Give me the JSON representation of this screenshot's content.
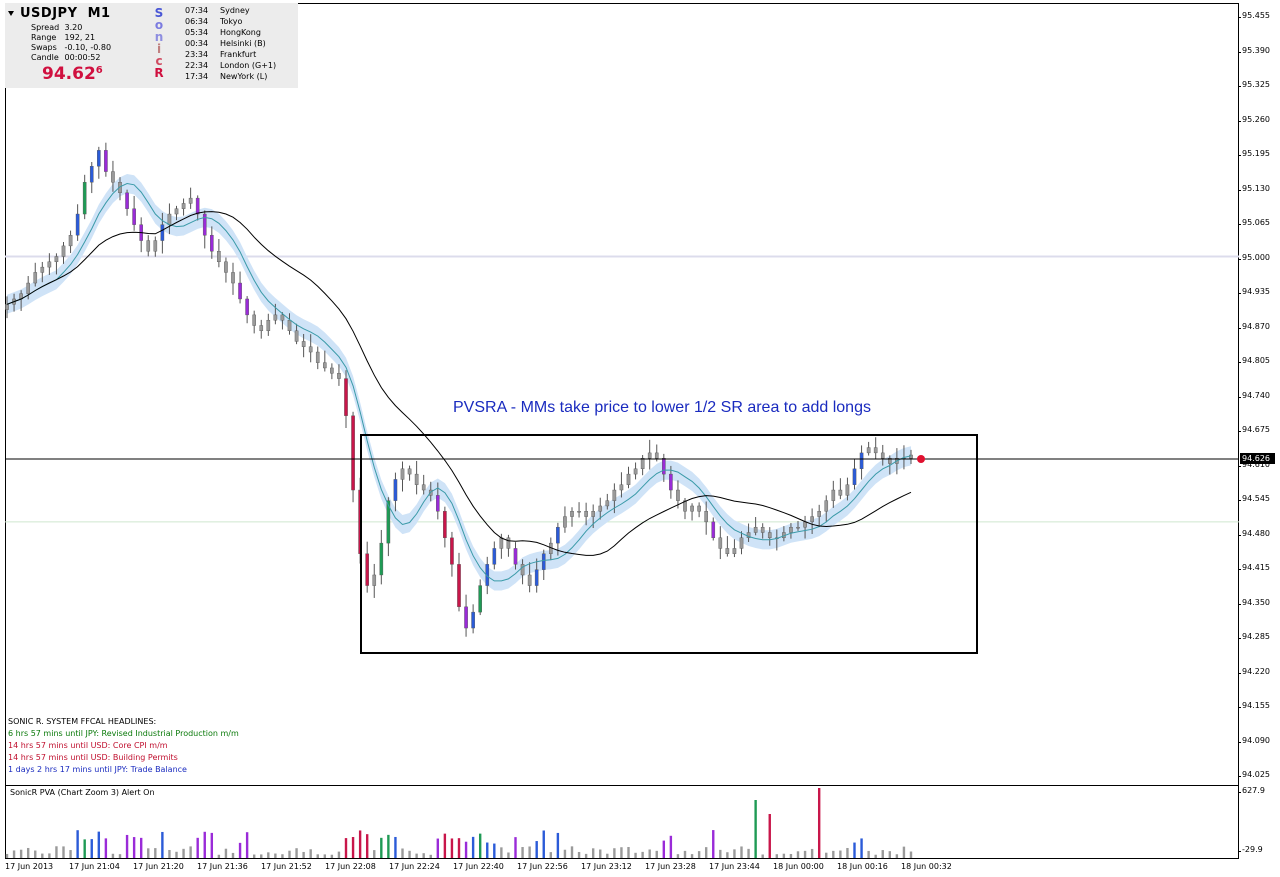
{
  "info_panel": {
    "symbol": "USDJPY",
    "timeframe": "M1",
    "rows": [
      {
        "key": "Spread",
        "value": "3.20"
      },
      {
        "key": "Range",
        "value": "192, 21"
      },
      {
        "key": "Swaps",
        "value": "-0.10, -0.80"
      },
      {
        "key": "Candle",
        "value": "00:00:52"
      }
    ],
    "bid_main": "94.62",
    "bid_pip": "6",
    "sonic_letters": [
      {
        "ch": "S",
        "color": "#4a57d6"
      },
      {
        "ch": "o",
        "color": "#7b7be0"
      },
      {
        "ch": "n",
        "color": "#8e8ee0"
      },
      {
        "ch": "i",
        "color": "#c08080"
      },
      {
        "ch": "c",
        "color": "#d04a60"
      },
      {
        "ch": "R",
        "color": "#d0103f"
      }
    ],
    "sessions": [
      {
        "time": "07:34",
        "name": "Sydney"
      },
      {
        "time": "06:34",
        "name": "Tokyo"
      },
      {
        "time": "05:34",
        "name": "HongKong"
      },
      {
        "time": "00:34",
        "name": "Helsinki  (B)"
      },
      {
        "time": "23:34",
        "name": "Frankfurt"
      },
      {
        "time": "22:34",
        "name": "London  (G+1)"
      },
      {
        "time": "17:34",
        "name": "NewYork  (L)"
      }
    ]
  },
  "annotation": "PVSRA - MMs take price to lower 1/2 SR area to add longs",
  "headlines": {
    "title": "SONIC R. SYSTEM  FFCAL HEADLINES:",
    "items": [
      {
        "text": "6 hrs 57 mins until JPY: Revised Industrial Production m/m",
        "color": "#0a7a0a"
      },
      {
        "text": "14 hrs 57 mins until USD: Core CPI m/m",
        "color": "#c0102f"
      },
      {
        "text": "14 hrs 57 mins until USD: Building Permits",
        "color": "#c0102f"
      },
      {
        "text": "1 days 2 hrs 17 mins until JPY: Trade Balance",
        "color": "#1a2bbf"
      }
    ]
  },
  "sub_window": {
    "label": "SonicR PVA  (Chart Zoom 3)  Alert On",
    "scale_max": "627.9",
    "scale_min": "-29.9"
  },
  "current_price_tag": "94.626",
  "chart_data": {
    "type": "candlestick",
    "symbol": "USDJPY",
    "timeframe": "M1",
    "y_ticks": [
      "95.455",
      "95.390",
      "95.325",
      "95.260",
      "95.195",
      "95.130",
      "95.065",
      "95.000",
      "94.935",
      "94.870",
      "94.805",
      "94.740",
      "94.675",
      "94.610",
      "94.545",
      "94.480",
      "94.415",
      "94.350",
      "94.285",
      "94.220",
      "94.155",
      "94.090",
      "94.025"
    ],
    "x_ticks": [
      "17 Jun 2013",
      "17 Jun 21:04",
      "17 Jun 21:20",
      "17 Jun 21:36",
      "17 Jun 21:52",
      "17 Jun 22:08",
      "17 Jun 22:24",
      "17 Jun 22:40",
      "17 Jun 22:56",
      "17 Jun 23:12",
      "17 Jun 23:28",
      "17 Jun 23:44",
      "18 Jun 00:00",
      "18 Jun 00:16",
      "18 Jun 00:32"
    ],
    "ylim": [
      94.0,
      95.46
    ],
    "current_price": 94.626,
    "horizontal_levels": [
      95.0,
      94.5
    ],
    "box": {
      "price_high": 94.67,
      "price_low": 94.26
    },
    "price_path": [
      94.91,
      94.92,
      94.93,
      94.95,
      94.97,
      94.98,
      94.99,
      95.0,
      95.02,
      95.04,
      95.08,
      95.14,
      95.17,
      95.2,
      95.16,
      95.14,
      95.12,
      95.09,
      95.06,
      95.03,
      95.01,
      95.03,
      95.06,
      95.08,
      95.09,
      95.1,
      95.11,
      95.08,
      95.04,
      95.01,
      94.99,
      94.97,
      94.95,
      94.92,
      94.89,
      94.87,
      94.86,
      94.88,
      94.89,
      94.88,
      94.86,
      94.84,
      94.83,
      94.82,
      94.8,
      94.79,
      94.78,
      94.77,
      94.7,
      94.56,
      94.44,
      94.38,
      94.4,
      94.46,
      94.54,
      94.58,
      94.6,
      94.59,
      94.57,
      94.56,
      94.55,
      94.52,
      94.47,
      94.42,
      94.34,
      94.3,
      94.33,
      94.38,
      94.42,
      94.45,
      94.47,
      94.45,
      94.42,
      94.4,
      94.38,
      94.41,
      94.44,
      94.46,
      94.49,
      94.51,
      94.52,
      94.52,
      94.51,
      94.52,
      94.53,
      94.54,
      94.56,
      94.57,
      94.59,
      94.6,
      94.62,
      94.63,
      94.62,
      94.59,
      94.56,
      94.54,
      94.52,
      94.53,
      94.52,
      94.5,
      94.47,
      94.45,
      94.44,
      94.45,
      94.47,
      94.48,
      94.49,
      94.48,
      94.47,
      94.47,
      94.48,
      94.49,
      94.49,
      94.5,
      94.51,
      94.52,
      94.54,
      94.56,
      94.55,
      94.57,
      94.6,
      94.63,
      94.64,
      94.63,
      94.62,
      94.61,
      94.62,
      94.62,
      94.626
    ]
  }
}
